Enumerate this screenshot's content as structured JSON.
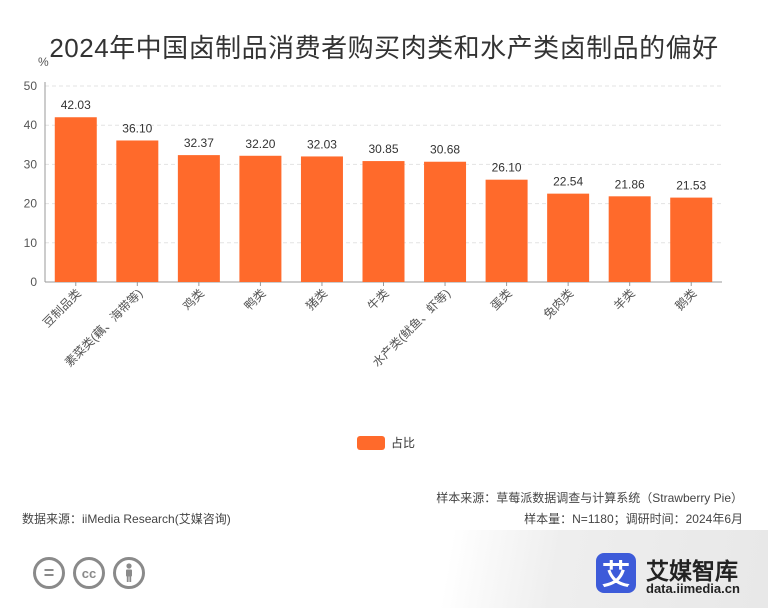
{
  "title": "2024年中国卤制品消费者购买肉类和水产类卤制品的偏好",
  "chart_data": {
    "type": "bar",
    "ylabel": "%",
    "ylim": [
      0,
      50
    ],
    "yticks": [
      0,
      10,
      20,
      30,
      40,
      50
    ],
    "grid": true,
    "legend_position": "bottom-center",
    "categories": [
      "豆制品类",
      "素菜类(藕、海带等)",
      "鸡类",
      "鸭类",
      "猪类",
      "牛类",
      "水产类(鱿鱼、虾等)",
      "蛋类",
      "兔肉类",
      "羊类",
      "鹅类"
    ],
    "series": [
      {
        "name": "占比",
        "values": [
          42.03,
          36.1,
          32.37,
          32.2,
          32.03,
          30.85,
          30.68,
          26.1,
          22.54,
          21.86,
          21.53
        ],
        "labels": [
          "42.03",
          "36.10",
          "32.37",
          "32.20",
          "32.03",
          "30.85",
          "30.68",
          "26.10",
          "22.54",
          "21.86",
          "21.53"
        ]
      }
    ]
  },
  "colors": {
    "bar": "#ff6a2b",
    "grid": "#e3e3e3",
    "axis": "#999999"
  },
  "footer": {
    "sample_source": "样本来源：草莓派数据调查与计算系统（Strawberry Pie）",
    "data_source": "数据来源：iiMedia Research(艾媒咨询)",
    "sample_info": "样本量：N=1180；调研时间：2024年6月"
  },
  "brand": {
    "logo_char": "艾",
    "name": "艾媒智库",
    "url": "data.iimedia.cn"
  },
  "license_icons": [
    "equals-icon",
    "cc-icon",
    "person-icon"
  ],
  "license_text": [
    "=",
    "cc"
  ]
}
